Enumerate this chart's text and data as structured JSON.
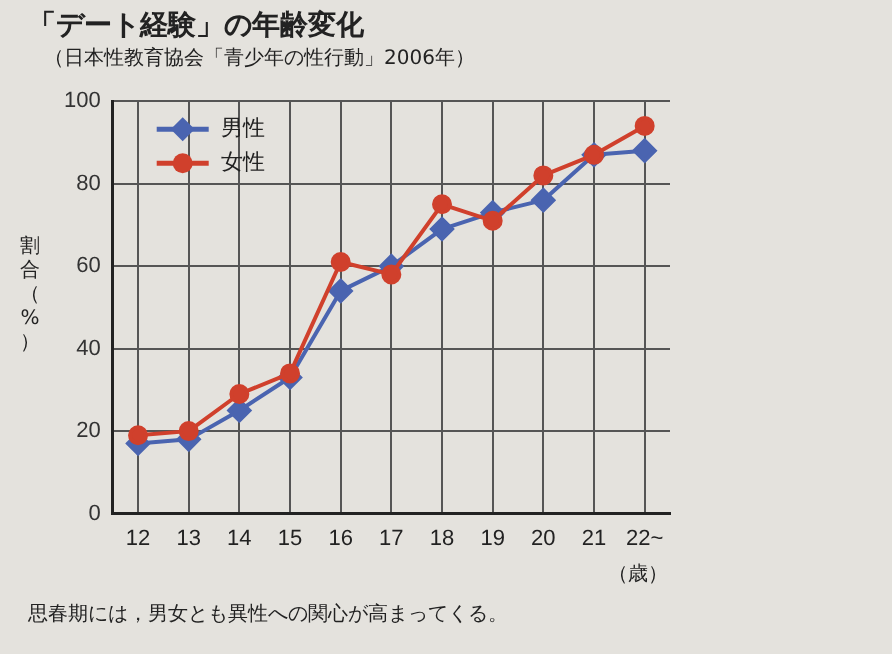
{
  "chart_data": {
    "type": "line",
    "title": "「デート経験」の年齢変化",
    "subtitle": "（日本性教育協会「青少年の性行動」2006年）",
    "ylabel": "割合（%）",
    "xlabel": "（歳）",
    "categories": [
      "12",
      "13",
      "14",
      "15",
      "16",
      "17",
      "18",
      "19",
      "20",
      "21",
      "22~"
    ],
    "series": [
      {
        "name": "男性",
        "color": "#4a64b0",
        "marker": "diamond",
        "values": [
          17,
          18,
          25,
          33,
          54,
          60,
          69,
          73,
          76,
          87,
          88
        ]
      },
      {
        "name": "女性",
        "color": "#d0402c",
        "marker": "circle",
        "values": [
          19,
          20,
          29,
          34,
          61,
          58,
          75,
          71,
          82,
          87,
          94
        ]
      }
    ],
    "ylim": [
      0,
      100
    ],
    "yticks": [
      0,
      20,
      40,
      60,
      80,
      100
    ],
    "grid": true,
    "legend": "top left",
    "annotations": [
      "思春期には，男女とも異性への関心が高まってくる。"
    ]
  }
}
